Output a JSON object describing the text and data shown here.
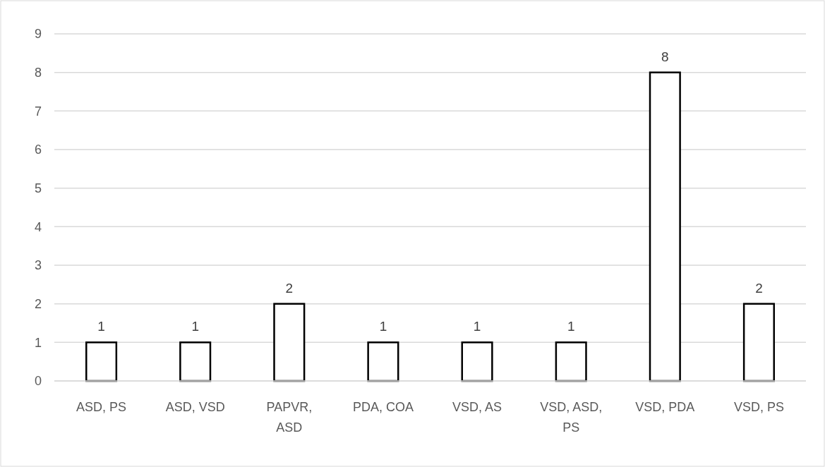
{
  "chart_data": {
    "type": "bar",
    "categories": [
      "ASD, PS",
      "ASD, VSD",
      "PAPVR, ASD",
      "PDA, COA",
      "VSD, AS",
      "VSD, ASD, PS",
      "VSD, PDA",
      "VSD, PS"
    ],
    "values": [
      1,
      1,
      2,
      1,
      1,
      1,
      8,
      2
    ],
    "color": "#ffffff",
    "ylim": [
      0,
      9
    ],
    "yticks": [
      0,
      1,
      2,
      3,
      4,
      5,
      6,
      7,
      8,
      9
    ],
    "grid": "y",
    "data_labels": true
  }
}
